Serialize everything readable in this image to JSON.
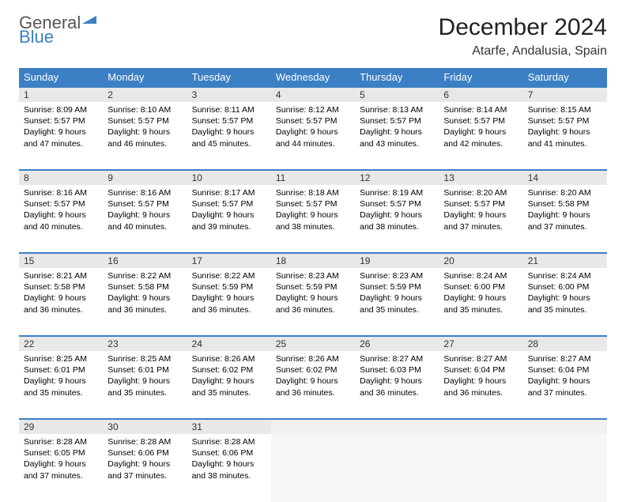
{
  "logo": {
    "text_top": "General",
    "text_bottom": "Blue",
    "accent_color": "#3b7fc4",
    "gray_color": "#555555"
  },
  "title": "December 2024",
  "location": "Atarfe, Andalusia, Spain",
  "colors": {
    "header_bg": "#3b7fc4",
    "header_text": "#ffffff",
    "daynum_bg": "#e8e8e8",
    "row_border": "#3b7fc4",
    "empty_bg": "#f1f1f1"
  },
  "font": {
    "title_size": 30,
    "location_size": 16,
    "weekday_size": 13,
    "daynum_size": 12,
    "body_size": 10.5
  },
  "weekdays": [
    "Sunday",
    "Monday",
    "Tuesday",
    "Wednesday",
    "Thursday",
    "Friday",
    "Saturday"
  ],
  "weeks": [
    [
      {
        "day": "1",
        "sunrise": "Sunrise: 8:09 AM",
        "sunset": "Sunset: 5:57 PM",
        "daylight1": "Daylight: 9 hours",
        "daylight2": "and 47 minutes."
      },
      {
        "day": "2",
        "sunrise": "Sunrise: 8:10 AM",
        "sunset": "Sunset: 5:57 PM",
        "daylight1": "Daylight: 9 hours",
        "daylight2": "and 46 minutes."
      },
      {
        "day": "3",
        "sunrise": "Sunrise: 8:11 AM",
        "sunset": "Sunset: 5:57 PM",
        "daylight1": "Daylight: 9 hours",
        "daylight2": "and 45 minutes."
      },
      {
        "day": "4",
        "sunrise": "Sunrise: 8:12 AM",
        "sunset": "Sunset: 5:57 PM",
        "daylight1": "Daylight: 9 hours",
        "daylight2": "and 44 minutes."
      },
      {
        "day": "5",
        "sunrise": "Sunrise: 8:13 AM",
        "sunset": "Sunset: 5:57 PM",
        "daylight1": "Daylight: 9 hours",
        "daylight2": "and 43 minutes."
      },
      {
        "day": "6",
        "sunrise": "Sunrise: 8:14 AM",
        "sunset": "Sunset: 5:57 PM",
        "daylight1": "Daylight: 9 hours",
        "daylight2": "and 42 minutes."
      },
      {
        "day": "7",
        "sunrise": "Sunrise: 8:15 AM",
        "sunset": "Sunset: 5:57 PM",
        "daylight1": "Daylight: 9 hours",
        "daylight2": "and 41 minutes."
      }
    ],
    [
      {
        "day": "8",
        "sunrise": "Sunrise: 8:16 AM",
        "sunset": "Sunset: 5:57 PM",
        "daylight1": "Daylight: 9 hours",
        "daylight2": "and 40 minutes."
      },
      {
        "day": "9",
        "sunrise": "Sunrise: 8:16 AM",
        "sunset": "Sunset: 5:57 PM",
        "daylight1": "Daylight: 9 hours",
        "daylight2": "and 40 minutes."
      },
      {
        "day": "10",
        "sunrise": "Sunrise: 8:17 AM",
        "sunset": "Sunset: 5:57 PM",
        "daylight1": "Daylight: 9 hours",
        "daylight2": "and 39 minutes."
      },
      {
        "day": "11",
        "sunrise": "Sunrise: 8:18 AM",
        "sunset": "Sunset: 5:57 PM",
        "daylight1": "Daylight: 9 hours",
        "daylight2": "and 38 minutes."
      },
      {
        "day": "12",
        "sunrise": "Sunrise: 8:19 AM",
        "sunset": "Sunset: 5:57 PM",
        "daylight1": "Daylight: 9 hours",
        "daylight2": "and 38 minutes."
      },
      {
        "day": "13",
        "sunrise": "Sunrise: 8:20 AM",
        "sunset": "Sunset: 5:57 PM",
        "daylight1": "Daylight: 9 hours",
        "daylight2": "and 37 minutes."
      },
      {
        "day": "14",
        "sunrise": "Sunrise: 8:20 AM",
        "sunset": "Sunset: 5:58 PM",
        "daylight1": "Daylight: 9 hours",
        "daylight2": "and 37 minutes."
      }
    ],
    [
      {
        "day": "15",
        "sunrise": "Sunrise: 8:21 AM",
        "sunset": "Sunset: 5:58 PM",
        "daylight1": "Daylight: 9 hours",
        "daylight2": "and 36 minutes."
      },
      {
        "day": "16",
        "sunrise": "Sunrise: 8:22 AM",
        "sunset": "Sunset: 5:58 PM",
        "daylight1": "Daylight: 9 hours",
        "daylight2": "and 36 minutes."
      },
      {
        "day": "17",
        "sunrise": "Sunrise: 8:22 AM",
        "sunset": "Sunset: 5:59 PM",
        "daylight1": "Daylight: 9 hours",
        "daylight2": "and 36 minutes."
      },
      {
        "day": "18",
        "sunrise": "Sunrise: 8:23 AM",
        "sunset": "Sunset: 5:59 PM",
        "daylight1": "Daylight: 9 hours",
        "daylight2": "and 36 minutes."
      },
      {
        "day": "19",
        "sunrise": "Sunrise: 8:23 AM",
        "sunset": "Sunset: 5:59 PM",
        "daylight1": "Daylight: 9 hours",
        "daylight2": "and 35 minutes."
      },
      {
        "day": "20",
        "sunrise": "Sunrise: 8:24 AM",
        "sunset": "Sunset: 6:00 PM",
        "daylight1": "Daylight: 9 hours",
        "daylight2": "and 35 minutes."
      },
      {
        "day": "21",
        "sunrise": "Sunrise: 8:24 AM",
        "sunset": "Sunset: 6:00 PM",
        "daylight1": "Daylight: 9 hours",
        "daylight2": "and 35 minutes."
      }
    ],
    [
      {
        "day": "22",
        "sunrise": "Sunrise: 8:25 AM",
        "sunset": "Sunset: 6:01 PM",
        "daylight1": "Daylight: 9 hours",
        "daylight2": "and 35 minutes."
      },
      {
        "day": "23",
        "sunrise": "Sunrise: 8:25 AM",
        "sunset": "Sunset: 6:01 PM",
        "daylight1": "Daylight: 9 hours",
        "daylight2": "and 35 minutes."
      },
      {
        "day": "24",
        "sunrise": "Sunrise: 8:26 AM",
        "sunset": "Sunset: 6:02 PM",
        "daylight1": "Daylight: 9 hours",
        "daylight2": "and 35 minutes."
      },
      {
        "day": "25",
        "sunrise": "Sunrise: 8:26 AM",
        "sunset": "Sunset: 6:02 PM",
        "daylight1": "Daylight: 9 hours",
        "daylight2": "and 36 minutes."
      },
      {
        "day": "26",
        "sunrise": "Sunrise: 8:27 AM",
        "sunset": "Sunset: 6:03 PM",
        "daylight1": "Daylight: 9 hours",
        "daylight2": "and 36 minutes."
      },
      {
        "day": "27",
        "sunrise": "Sunrise: 8:27 AM",
        "sunset": "Sunset: 6:04 PM",
        "daylight1": "Daylight: 9 hours",
        "daylight2": "and 36 minutes."
      },
      {
        "day": "28",
        "sunrise": "Sunrise: 8:27 AM",
        "sunset": "Sunset: 6:04 PM",
        "daylight1": "Daylight: 9 hours",
        "daylight2": "and 37 minutes."
      }
    ],
    [
      {
        "day": "29",
        "sunrise": "Sunrise: 8:28 AM",
        "sunset": "Sunset: 6:05 PM",
        "daylight1": "Daylight: 9 hours",
        "daylight2": "and 37 minutes."
      },
      {
        "day": "30",
        "sunrise": "Sunrise: 8:28 AM",
        "sunset": "Sunset: 6:06 PM",
        "daylight1": "Daylight: 9 hours",
        "daylight2": "and 37 minutes."
      },
      {
        "day": "31",
        "sunrise": "Sunrise: 8:28 AM",
        "sunset": "Sunset: 6:06 PM",
        "daylight1": "Daylight: 9 hours",
        "daylight2": "and 38 minutes."
      },
      null,
      null,
      null,
      null
    ]
  ]
}
